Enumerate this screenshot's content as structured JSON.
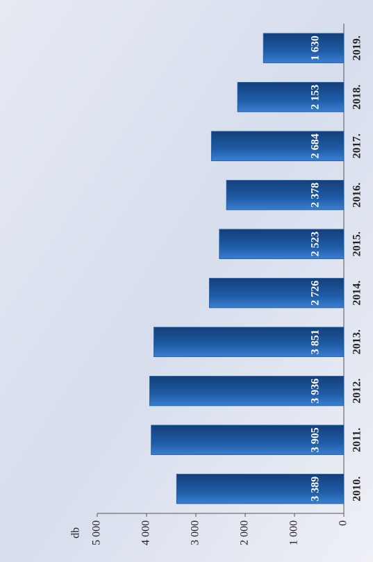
{
  "chart_data": {
    "type": "bar",
    "y_label": "db",
    "categories": [
      "2010.",
      "2011.",
      "2012.",
      "2013.",
      "2014.",
      "2015.",
      "2016.",
      "2017.",
      "2018.",
      "2019."
    ],
    "values": [
      3389,
      3905,
      3936,
      3851,
      2726,
      2523,
      2378,
      2684,
      2153,
      1630
    ],
    "value_labels": [
      "3 389",
      "3 905",
      "3 936",
      "3 851",
      "2 726",
      "2 523",
      "2 378",
      "2 684",
      "2 153",
      "1 630"
    ],
    "color": "#1f5ca6",
    "ylim": [
      0,
      5000
    ],
    "yticks": [
      0,
      {
        "value": 1000,
        "label": "1 000"
      },
      {
        "value": 2000,
        "label": "2 000"
      },
      {
        "value": 3000,
        "label": "3 000"
      },
      {
        "value": 4000,
        "label": "4 000"
      },
      {
        "value": 5000,
        "label": "5 000"
      }
    ],
    "grid": false
  }
}
